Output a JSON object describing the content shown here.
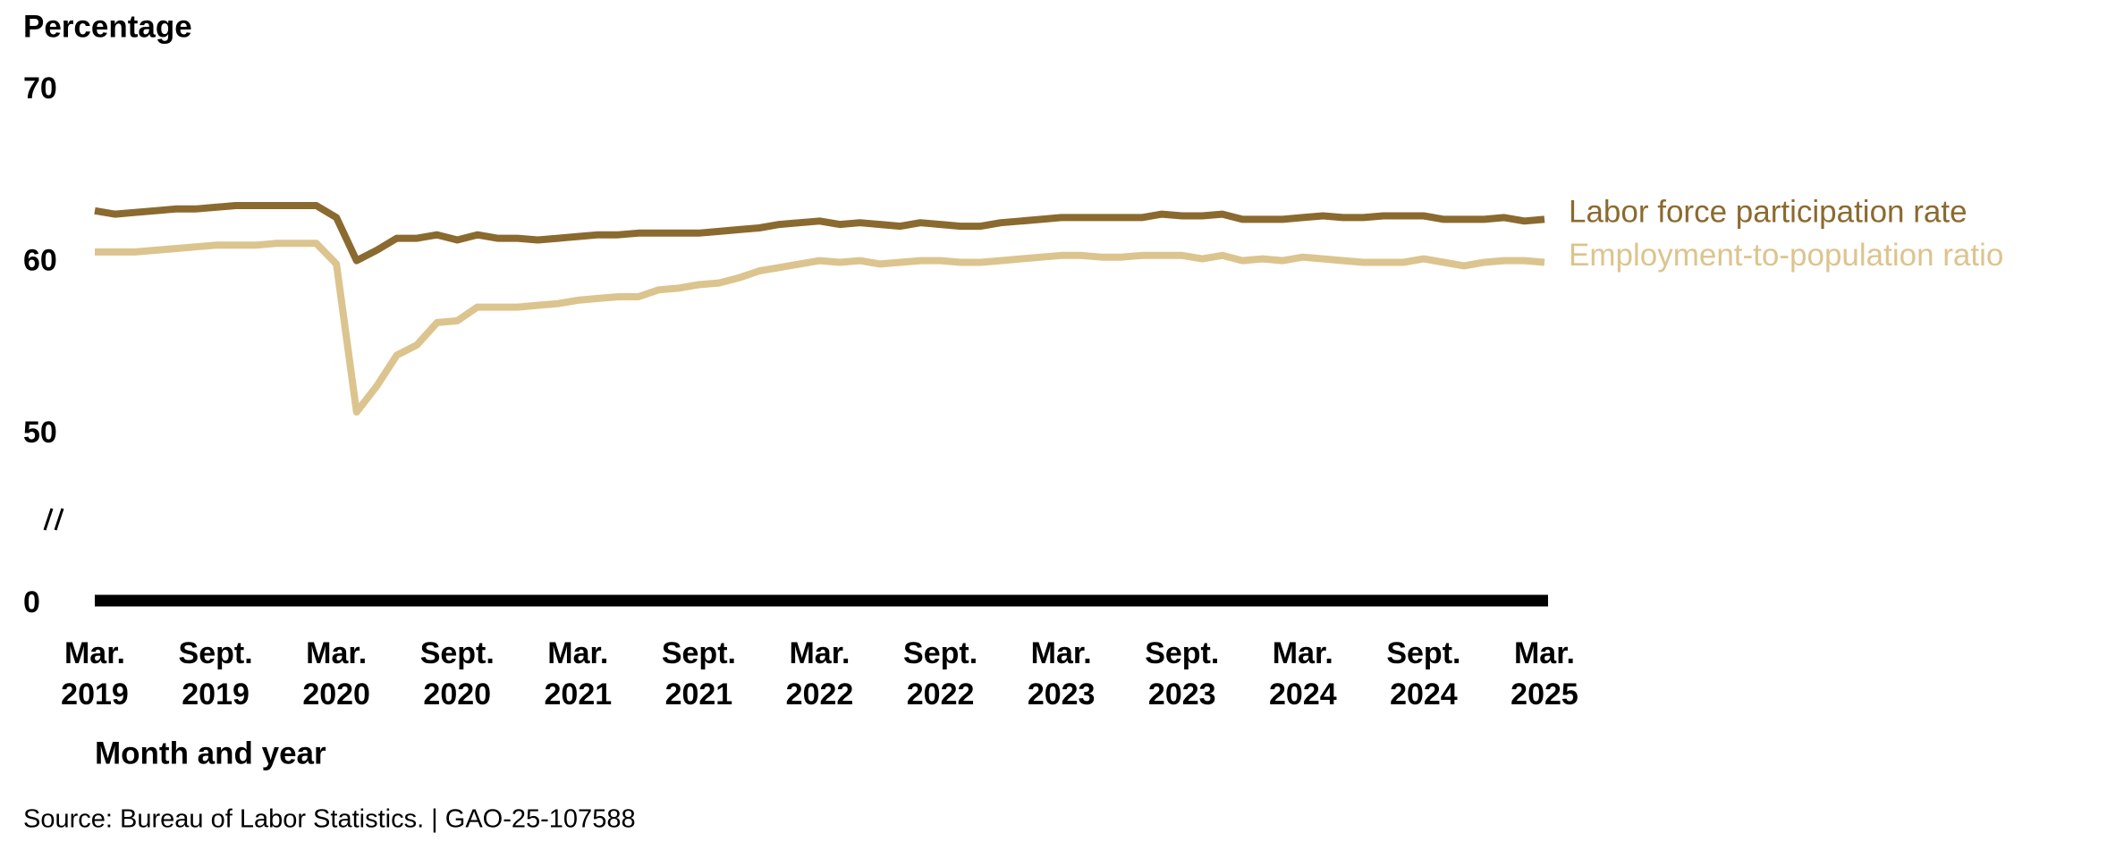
{
  "chart_data": {
    "type": "line",
    "y_label": "Percentage",
    "x_label": "Month and year",
    "source": "Source: Bureau of Labor Statistics.  |  GAO-25-107588",
    "categories": [
      "Mar. 2019",
      null,
      null,
      null,
      null,
      null,
      "Sept. 2019",
      null,
      null,
      null,
      null,
      null,
      "Mar. 2020",
      null,
      null,
      null,
      null,
      null,
      "Sept. 2020",
      null,
      null,
      null,
      null,
      null,
      "Mar. 2021",
      null,
      null,
      null,
      null,
      null,
      "Sept. 2021",
      null,
      null,
      null,
      null,
      null,
      "Mar. 2022",
      null,
      null,
      null,
      null,
      null,
      "Sept. 2022",
      null,
      null,
      null,
      null,
      null,
      "Mar. 2023",
      null,
      null,
      null,
      null,
      null,
      "Sept. 2023",
      null,
      null,
      null,
      null,
      null,
      "Mar. 2024",
      null,
      null,
      null,
      null,
      null,
      "Sept. 2024",
      null,
      null,
      null,
      null,
      null,
      "Mar. 2025"
    ],
    "series": [
      {
        "name": "Labor force participation rate",
        "color": "#8b6a2f",
        "values": [
          63.0,
          62.8,
          62.9,
          63.0,
          63.1,
          63.1,
          63.2,
          63.3,
          63.3,
          63.3,
          63.3,
          63.3,
          62.6,
          60.1,
          60.7,
          61.4,
          61.4,
          61.6,
          61.3,
          61.6,
          61.4,
          61.4,
          61.3,
          61.4,
          61.5,
          61.6,
          61.6,
          61.7,
          61.7,
          61.7,
          61.7,
          61.8,
          61.9,
          62.0,
          62.2,
          62.3,
          62.4,
          62.2,
          62.3,
          62.2,
          62.1,
          62.3,
          62.2,
          62.1,
          62.1,
          62.3,
          62.4,
          62.5,
          62.6,
          62.6,
          62.6,
          62.6,
          62.6,
          62.8,
          62.7,
          62.7,
          62.8,
          62.5,
          62.5,
          62.5,
          62.6,
          62.7,
          62.6,
          62.6,
          62.7,
          62.7,
          62.7,
          62.5,
          62.5,
          62.5,
          62.6,
          62.4,
          62.5
        ]
      },
      {
        "name": "Employment-to-population ratio",
        "color": "#dcc48e",
        "values": [
          60.6,
          60.6,
          60.6,
          60.7,
          60.8,
          60.9,
          61.0,
          61.0,
          61.0,
          61.1,
          61.1,
          61.1,
          59.9,
          51.3,
          52.8,
          54.6,
          55.2,
          56.5,
          56.6,
          57.4,
          57.4,
          57.4,
          57.5,
          57.6,
          57.8,
          57.9,
          58.0,
          58.0,
          58.4,
          58.5,
          58.7,
          58.8,
          59.1,
          59.5,
          59.7,
          59.9,
          60.1,
          60.0,
          60.1,
          59.9,
          60.0,
          60.1,
          60.1,
          60.0,
          60.0,
          60.1,
          60.2,
          60.3,
          60.4,
          60.4,
          60.3,
          60.3,
          60.4,
          60.4,
          60.4,
          60.2,
          60.4,
          60.1,
          60.2,
          60.1,
          60.3,
          60.2,
          60.1,
          60.0,
          60.0,
          60.0,
          60.2,
          60.0,
          59.8,
          60.0,
          60.1,
          60.1,
          60.0
        ]
      }
    ],
    "ylim": [
      0,
      70
    ],
    "yticks": [
      0,
      50,
      60,
      70
    ],
    "axis_break": true,
    "grid": false,
    "legend_position": "line-end"
  }
}
